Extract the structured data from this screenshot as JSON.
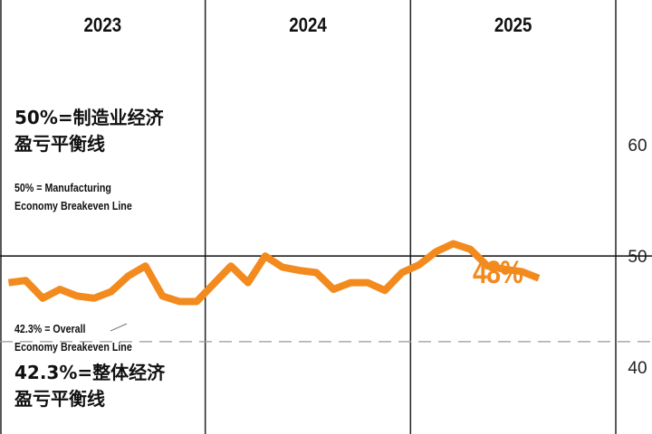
{
  "chart_data": {
    "type": "line",
    "title": "",
    "xlabel": "",
    "ylabel": "",
    "years": [
      "2023",
      "2024",
      "2025"
    ],
    "ylim": [
      34,
      73
    ],
    "y_ticks": [
      60,
      50,
      40
    ],
    "series": [
      {
        "color": "#f28a1e",
        "x": [
          "2023-01",
          "2023-02",
          "2023-03",
          "2023-04",
          "2023-05",
          "2023-06",
          "2023-07",
          "2023-08",
          "2023-09",
          "2023-10",
          "2023-11",
          "2023-12",
          "2024-01",
          "2024-02",
          "2024-03",
          "2024-04",
          "2024-05",
          "2024-06",
          "2024-07",
          "2024-08",
          "2024-09",
          "2024-10",
          "2024-11",
          "2024-12",
          "2025-01",
          "2025-02",
          "2025-03",
          "2025-04",
          "2025-05",
          "2025-06",
          "2025-07"
        ],
        "values": [
          47.6,
          47.8,
          46.2,
          47.0,
          46.4,
          46.2,
          46.8,
          48.2,
          49.1,
          46.4,
          45.9,
          45.9,
          47.5,
          49.1,
          47.6,
          50.0,
          49.0,
          48.7,
          48.5,
          47.0,
          47.6,
          47.6,
          46.9,
          48.5,
          49.2,
          50.4,
          51.1,
          50.6,
          49.1,
          48.8,
          48.6
        ]
      }
    ],
    "projection": {
      "x": "2025-08",
      "value": 48.0,
      "label": "48%"
    },
    "reference_lines": [
      {
        "value": 50,
        "style": "solid",
        "label_zh": "50%=制造业经济盈亏平衡线",
        "label_en": [
          "50% = Manufacturing",
          "Economy Breakeven Line"
        ]
      },
      {
        "value": 42.3,
        "style": "dashed",
        "label_zh": "42.3%=整体经济盈亏平衡线",
        "label_en": [
          "42.3% = Overall",
          "Economy Breakeven Line"
        ]
      }
    ],
    "grid": true
  },
  "annotations": {
    "fifty_zh_line1": "50%=制造业经济",
    "fifty_zh_line2": "盈亏平衡线",
    "fifty_en_line1": "50% = Manufacturing",
    "fifty_en_line2": "Economy Breakeven Line",
    "overall_en_line1": "42.3% = Overall",
    "overall_en_line2": "Economy Breakeven Line",
    "overall_zh_line1": "42.3%=整体经济",
    "overall_zh_line2": "盈亏平衡线",
    "current_value": "48%"
  }
}
